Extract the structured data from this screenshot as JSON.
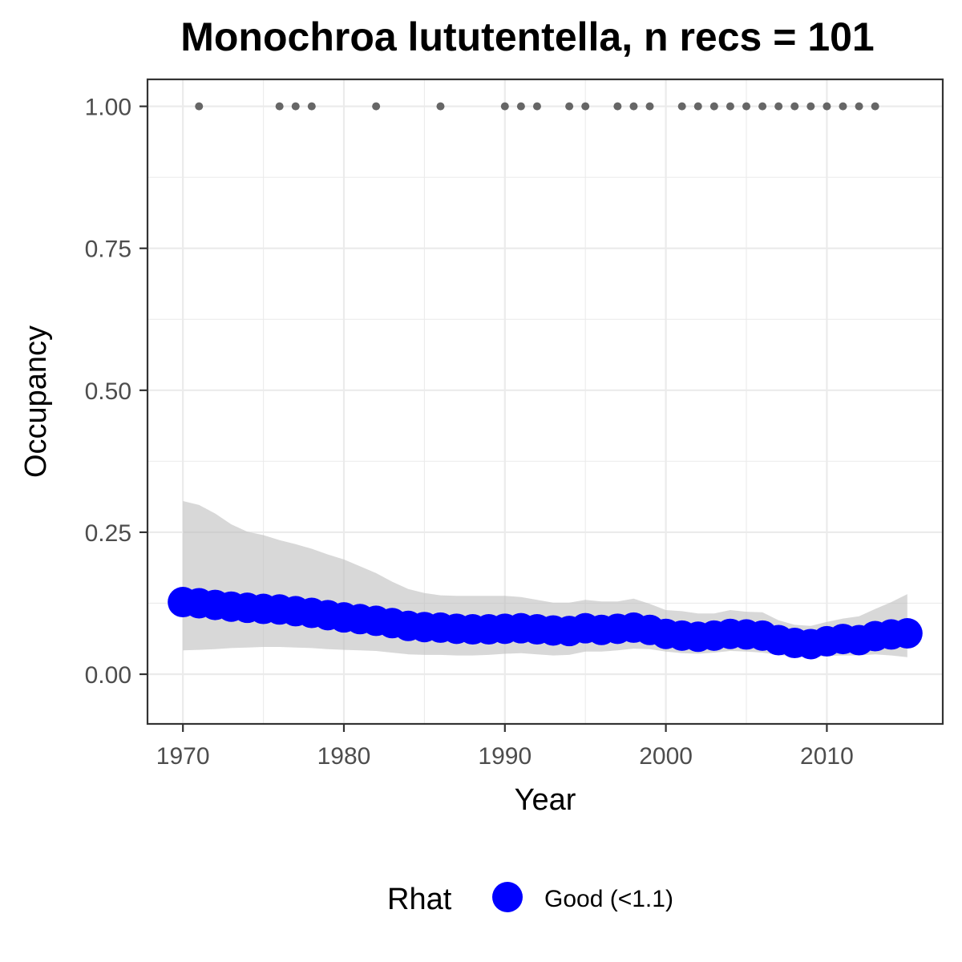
{
  "chart_data": {
    "type": "line",
    "title": "Monochroa lututentella, n recs = 101",
    "xlabel": "Year",
    "ylabel": "Occupancy",
    "xlim": [
      1967.8,
      2017.2
    ],
    "ylim": [
      -0.0875,
      1.0475
    ],
    "x_ticks": [
      "1970",
      "1980",
      "1990",
      "2000",
      "2010"
    ],
    "x_tick_values": [
      1970,
      1980,
      1990,
      2000,
      2010
    ],
    "y_ticks": [
      "0.00",
      "0.25",
      "0.50",
      "0.75",
      "1.00"
    ],
    "y_tick_values": [
      0,
      0.25,
      0.5,
      0.75,
      1.0
    ],
    "grid": true,
    "legend_position": "bottom",
    "legend": {
      "title": "Rhat",
      "label": "Good (<1.1)"
    },
    "colors": {
      "series": "#0000ff",
      "ribbon": "#bebebe",
      "records": "#666666"
    },
    "series": [
      {
        "x": [
          1970,
          1971,
          1972,
          1973,
          1974,
          1975,
          1976,
          1977,
          1978,
          1979,
          1980,
          1981,
          1982,
          1983,
          1984,
          1985,
          1986,
          1987,
          1988,
          1989,
          1990,
          1991,
          1992,
          1993,
          1994,
          1995,
          1996,
          1997,
          1998,
          1999,
          2000,
          2001,
          2002,
          2003,
          2004,
          2005,
          2006,
          2007,
          2008,
          2009,
          2010,
          2011,
          2012,
          2013,
          2014,
          2015
        ],
        "values": [
          0.127,
          0.125,
          0.122,
          0.119,
          0.117,
          0.115,
          0.114,
          0.111,
          0.108,
          0.104,
          0.1,
          0.097,
          0.094,
          0.09,
          0.085,
          0.083,
          0.082,
          0.08,
          0.079,
          0.079,
          0.08,
          0.081,
          0.079,
          0.077,
          0.076,
          0.081,
          0.078,
          0.08,
          0.082,
          0.078,
          0.071,
          0.068,
          0.066,
          0.068,
          0.071,
          0.07,
          0.068,
          0.06,
          0.055,
          0.053,
          0.058,
          0.062,
          0.06,
          0.067,
          0.07,
          0.072
        ],
        "lower": [
          0.042,
          0.043,
          0.044,
          0.046,
          0.047,
          0.048,
          0.048,
          0.047,
          0.046,
          0.044,
          0.043,
          0.042,
          0.041,
          0.038,
          0.035,
          0.034,
          0.034,
          0.033,
          0.033,
          0.034,
          0.036,
          0.037,
          0.035,
          0.033,
          0.034,
          0.04,
          0.04,
          0.042,
          0.045,
          0.044,
          0.04,
          0.037,
          0.036,
          0.038,
          0.041,
          0.04,
          0.038,
          0.034,
          0.031,
          0.03,
          0.032,
          0.033,
          0.033,
          0.035,
          0.033,
          0.03
        ],
        "upper": [
          0.305,
          0.298,
          0.283,
          0.264,
          0.251,
          0.245,
          0.236,
          0.229,
          0.221,
          0.211,
          0.202,
          0.19,
          0.178,
          0.163,
          0.15,
          0.143,
          0.139,
          0.138,
          0.138,
          0.138,
          0.138,
          0.136,
          0.131,
          0.126,
          0.126,
          0.131,
          0.128,
          0.128,
          0.133,
          0.124,
          0.113,
          0.111,
          0.107,
          0.107,
          0.113,
          0.11,
          0.109,
          0.095,
          0.087,
          0.085,
          0.092,
          0.098,
          0.102,
          0.115,
          0.127,
          0.141
        ]
      }
    ],
    "records": {
      "x": [
        1971,
        1976,
        1977,
        1978,
        1982,
        1986,
        1990,
        1991,
        1992,
        1994,
        1995,
        1997,
        1998,
        1999,
        2001,
        2002,
        2003,
        2004,
        2005,
        2006,
        2007,
        2008,
        2009,
        2010,
        2011,
        2012,
        2013
      ],
      "values": [
        1,
        1,
        1,
        1,
        1,
        1,
        1,
        1,
        1,
        1,
        1,
        1,
        1,
        1,
        1,
        1,
        1,
        1,
        1,
        1,
        1,
        1,
        1,
        1,
        1,
        1,
        1
      ]
    }
  }
}
